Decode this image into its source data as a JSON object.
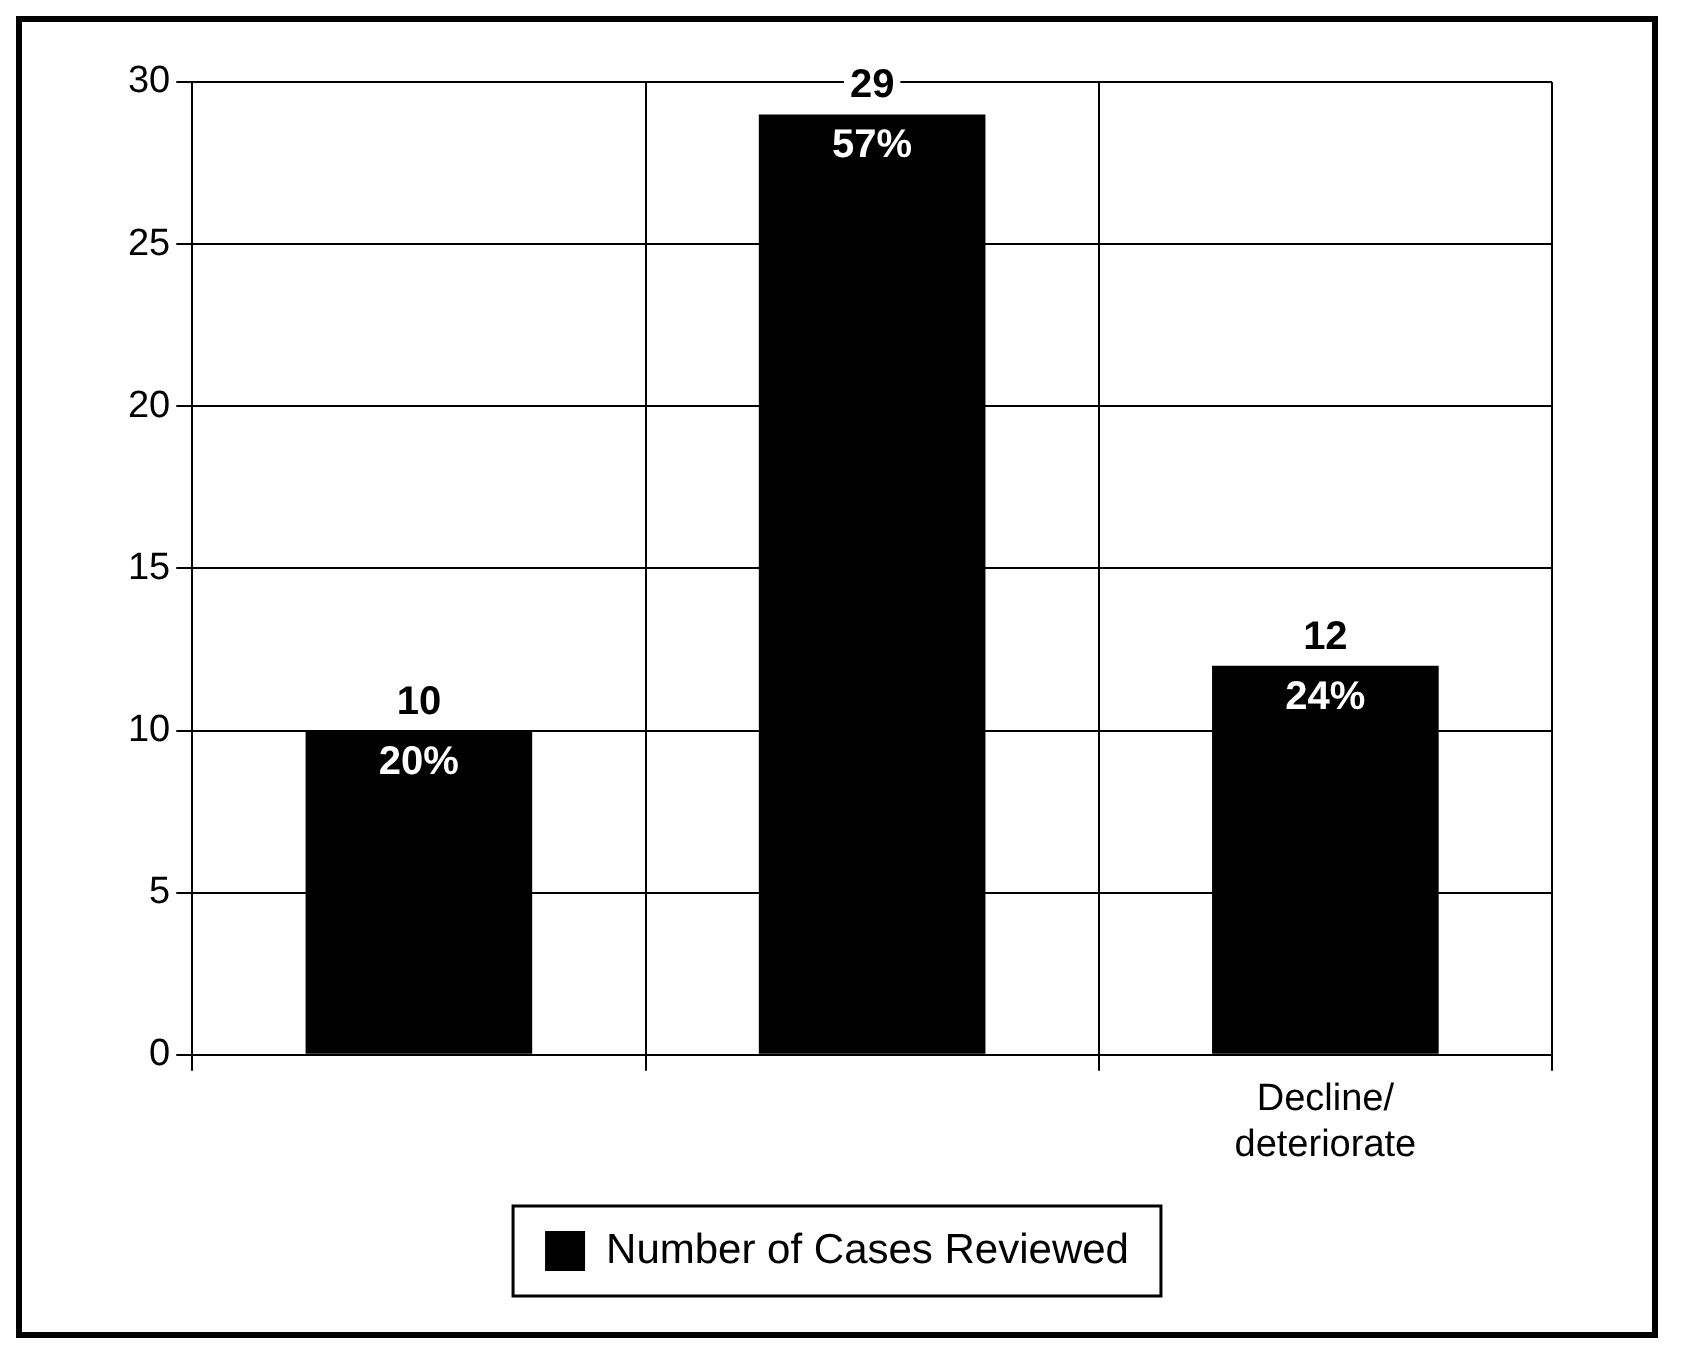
{
  "chart_data": {
    "type": "bar",
    "categories": [
      null,
      null,
      "Decline/\ndeteriorate"
    ],
    "series": [
      {
        "name": "Number of Cases Reviewed",
        "color": "#000000",
        "values": [
          10,
          29,
          12
        ],
        "value_labels": [
          "10\n20%",
          "29\n57%",
          "12\n24%"
        ]
      }
    ],
    "ylim": [
      0,
      30
    ],
    "yticks": [
      0,
      5,
      10,
      15,
      20,
      25,
      30
    ],
    "grid": true,
    "legend": "bottom"
  }
}
